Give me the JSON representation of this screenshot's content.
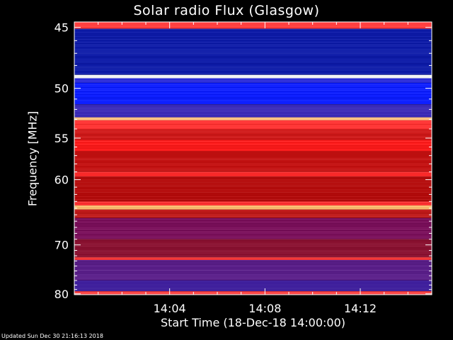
{
  "chart_data": {
    "type": "heatmap",
    "title": "Solar radio Flux (Glasgow)",
    "xlabel": "Start Time (18-Dec-18 14:00:00)",
    "ylabel": "Frequency [MHz]",
    "y_ticks": [
      45,
      50,
      55,
      60,
      70,
      80
    ],
    "x_ticks": [
      "14:04",
      "14:08",
      "14:12"
    ],
    "x_tick_minutes": [
      4,
      8,
      12
    ],
    "xlim_minutes": [
      0,
      15
    ],
    "ylim_mhz": [
      44.6,
      80.2
    ],
    "y_scale": "reciprocal",
    "colormap": "blue-red-yellow-white",
    "colors": {
      "background": "#000000",
      "low": "#0000ff",
      "mid": "#b00000",
      "high": "#ff2020",
      "peak": "#ffd070"
    },
    "bands": [
      {
        "f": [
          44.6,
          45.1
        ],
        "color": "#ff3a3a"
      },
      {
        "f": [
          45.1,
          48.8
        ],
        "color": "#0c1aa8"
      },
      {
        "f": [
          48.8,
          49.1
        ],
        "color": "#ffffff"
      },
      {
        "f": [
          49.1,
          49.5
        ],
        "color": "#2a2ad8"
      },
      {
        "f": [
          49.5,
          51.5
        ],
        "color": "#0a1cff"
      },
      {
        "f": [
          51.5,
          52.8
        ],
        "color": "#3a2ab8"
      },
      {
        "f": [
          52.8,
          53.1
        ],
        "color": "#ffc080"
      },
      {
        "f": [
          53.1,
          54.0
        ],
        "color": "#ff3030"
      },
      {
        "f": [
          54.0,
          55.2
        ],
        "color": "#d01818"
      },
      {
        "f": [
          55.2,
          56.5
        ],
        "color": "#ff1a1a"
      },
      {
        "f": [
          56.5,
          59.0
        ],
        "color": "#c41010"
      },
      {
        "f": [
          59.0,
          59.6
        ],
        "color": "#ff2a2a"
      },
      {
        "f": [
          59.6,
          63.0
        ],
        "color": "#b40a0a"
      },
      {
        "f": [
          63.0,
          63.6
        ],
        "color": "#ff3030"
      },
      {
        "f": [
          63.6,
          64.2
        ],
        "color": "#ffc070"
      },
      {
        "f": [
          64.2,
          65.5
        ],
        "color": "#c01818"
      },
      {
        "f": [
          65.5,
          69.0
        ],
        "color": "#7a0e5a"
      },
      {
        "f": [
          69.0,
          72.3
        ],
        "color": "#8a1030"
      },
      {
        "f": [
          72.3,
          72.8
        ],
        "color": "#ff3a3a"
      },
      {
        "f": [
          72.8,
          77.0
        ],
        "color": "#5a1e8a"
      },
      {
        "f": [
          77.0,
          79.4
        ],
        "color": "#3a1a9a"
      },
      {
        "f": [
          79.4,
          80.2
        ],
        "color": "#ff4040"
      }
    ],
    "grid": false,
    "legend": "none"
  },
  "footer": "Updated Sun Dec 30 21:16:13 2018"
}
